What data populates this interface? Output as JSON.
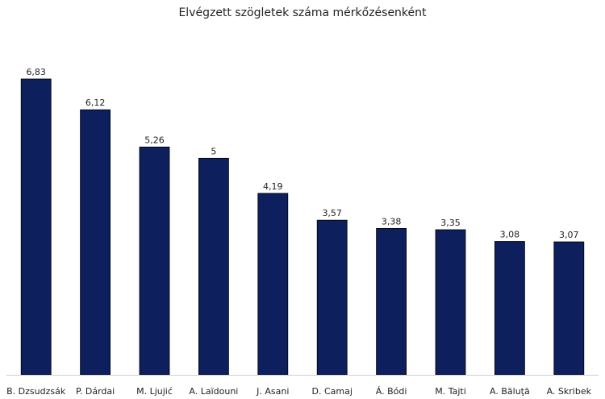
{
  "chart_data": {
    "type": "bar",
    "title": "Elvégzett szögletek száma mérkőzésenként",
    "xlabel": "",
    "ylabel": "",
    "categories": [
      "B. Dzsudzsák",
      "P. Dárdai",
      "M. Ljujić",
      "A. Laïdouni",
      "J. Asani",
      "D. Camaj",
      "Á. Bódi",
      "M. Tajti",
      "A. Băluţă",
      "A. Skribek"
    ],
    "values": [
      6.83,
      6.12,
      5.26,
      5,
      4.19,
      3.57,
      3.38,
      3.35,
      3.08,
      3.07
    ],
    "value_labels": [
      "6,83",
      "6,12",
      "5,26",
      "5",
      "4,19",
      "3,57",
      "3,38",
      "3,35",
      "3,08",
      "3,07"
    ],
    "ylim": [
      0,
      6.83
    ],
    "grid": false,
    "legend": "none",
    "colors": {
      "bar": "#0d1f5c",
      "axis": "#d0d0d0"
    }
  }
}
